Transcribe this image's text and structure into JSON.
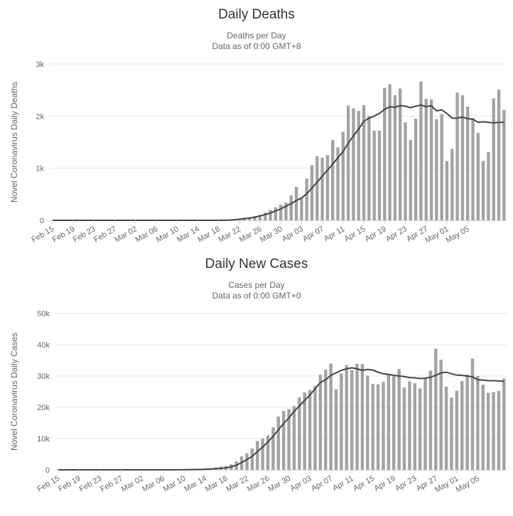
{
  "chart_data": [
    {
      "type": "bar",
      "title": "Daily Deaths",
      "subtitle_lines": [
        "Deaths per Day",
        "Data as of 0:00 GMT+8"
      ],
      "ylabel": "Novel Coronavirus Daily Deaths",
      "ylim": [
        0,
        3000
      ],
      "y_ticks": [
        "0",
        "1k",
        "2k",
        "3k"
      ],
      "grid": true,
      "x_tick_labels": [
        "Feb 15",
        "Feb 19",
        "Feb 23",
        "Feb 27",
        "Mar 02",
        "Mar 06",
        "Mar 10",
        "Mar 14",
        "Mar 18",
        "Mar 22",
        "Mar 26",
        "Mar 30",
        "Apr 03",
        "Apr 07",
        "Apr 11",
        "Apr 15",
        "Apr 19",
        "Apr 23",
        "Apr 27",
        "May 01",
        "May 05"
      ],
      "first_date": "Feb 15",
      "series": [
        {
          "legend": "bars",
          "values": [
            0,
            0,
            0,
            0,
            0,
            0,
            0,
            0,
            0,
            0,
            0,
            0,
            0,
            0,
            0,
            0,
            0,
            0,
            0,
            0,
            0,
            0,
            0,
            0,
            0,
            0,
            0,
            0,
            0,
            0,
            0,
            0,
            0,
            10,
            10,
            20,
            30,
            50,
            60,
            80,
            100,
            150,
            200,
            250,
            300,
            340,
            480,
            640,
            440,
            800,
            1060,
            1230,
            1200,
            1250,
            1540,
            1400,
            1700,
            2200,
            2150,
            2100,
            2210,
            2000,
            1720,
            1720,
            2540,
            2610,
            2400,
            2530,
            1880,
            1540,
            1950,
            2660,
            2330,
            2320,
            1940,
            2040,
            1140,
            1370,
            2450,
            2400,
            2180,
            1960,
            1680,
            1140,
            1310,
            2340,
            2510,
            2120
          ]
        },
        {
          "legend": "line",
          "values": [
            0,
            0,
            0,
            0,
            0,
            0,
            0,
            0,
            0,
            0,
            0,
            0,
            0,
            0,
            0,
            0,
            0,
            0,
            0,
            0,
            0,
            0,
            0,
            0,
            0,
            0,
            0,
            0,
            0,
            0,
            0,
            0,
            0,
            2,
            5,
            10,
            20,
            30,
            45,
            60,
            85,
            110,
            140,
            180,
            220,
            270,
            320,
            380,
            430,
            510,
            620,
            730,
            850,
            960,
            1080,
            1200,
            1320,
            1480,
            1620,
            1750,
            1900,
            1960,
            2000,
            2050,
            2130,
            2180,
            2170,
            2200,
            2190,
            2160,
            2190,
            2210,
            2180,
            2200,
            2100,
            2120,
            2050,
            1960,
            1960,
            1980,
            1950,
            1940,
            1880,
            1890,
            1880,
            1870,
            1880,
            1880
          ]
        }
      ]
    },
    {
      "type": "bar",
      "title": "Daily New Cases",
      "subtitle_lines": [
        "Cases per Day",
        "Data as of 0:00 GMT+0"
      ],
      "ylabel": "Novel Coronavirus Daily Cases",
      "ylim": [
        0,
        50000
      ],
      "y_ticks": [
        "0",
        "10k",
        "20k",
        "30k",
        "40k",
        "50k"
      ],
      "grid": true,
      "x_tick_labels": [
        "Feb 15",
        "Feb 19",
        "Feb 23",
        "Feb 27",
        "Mar 02",
        "Mar 06",
        "Mar 10",
        "Mar 14",
        "Mar 18",
        "Mar 22",
        "Mar 26",
        "Mar 30",
        "Apr 03",
        "Apr 07",
        "Apr 11",
        "Apr 15",
        "Apr 19",
        "Apr 23",
        "Apr 27",
        "May 01",
        "May 05"
      ],
      "first_date": "Feb 15",
      "series": [
        {
          "legend": "bars",
          "values": [
            0,
            0,
            0,
            0,
            0,
            0,
            0,
            0,
            0,
            0,
            0,
            0,
            0,
            0,
            0,
            0,
            0,
            0,
            0,
            0,
            0,
            0,
            0,
            100,
            100,
            150,
            200,
            300,
            400,
            500,
            700,
            1000,
            1200,
            1800,
            2700,
            4300,
            5300,
            6800,
            9200,
            10000,
            11000,
            13600,
            17000,
            18800,
            19400,
            20400,
            23200,
            24800,
            25500,
            26800,
            30400,
            32000,
            34000,
            25700,
            30800,
            33500,
            31900,
            33900,
            33800,
            30100,
            27500,
            27300,
            28100,
            30600,
            29900,
            32200,
            26300,
            28300,
            27700,
            26000,
            29500,
            31700,
            38700,
            35200,
            26600,
            23100,
            25300,
            28400,
            30400,
            35600,
            30000,
            27200,
            24600,
            24900,
            25200,
            29200
          ]
        },
        {
          "legend": "line",
          "values": [
            0,
            0,
            0,
            0,
            0,
            0,
            0,
            0,
            0,
            0,
            0,
            0,
            0,
            0,
            0,
            0,
            0,
            0,
            0,
            0,
            0,
            0,
            0,
            20,
            40,
            60,
            80,
            120,
            180,
            250,
            350,
            480,
            650,
            900,
            1500,
            2300,
            3300,
            4300,
            5800,
            7300,
            8900,
            10700,
            12800,
            14800,
            16600,
            18700,
            20400,
            22200,
            23900,
            25900,
            27900,
            28800,
            30200,
            31000,
            31800,
            32300,
            32600,
            32300,
            31800,
            32100,
            31900,
            31200,
            30700,
            30500,
            30200,
            30000,
            29800,
            29500,
            29400,
            29200,
            29300,
            29600,
            30200,
            31000,
            31200,
            30700,
            30300,
            30200,
            30000,
            29700,
            28800,
            28700,
            28500,
            28500,
            28400,
            28300
          ]
        }
      ]
    }
  ]
}
